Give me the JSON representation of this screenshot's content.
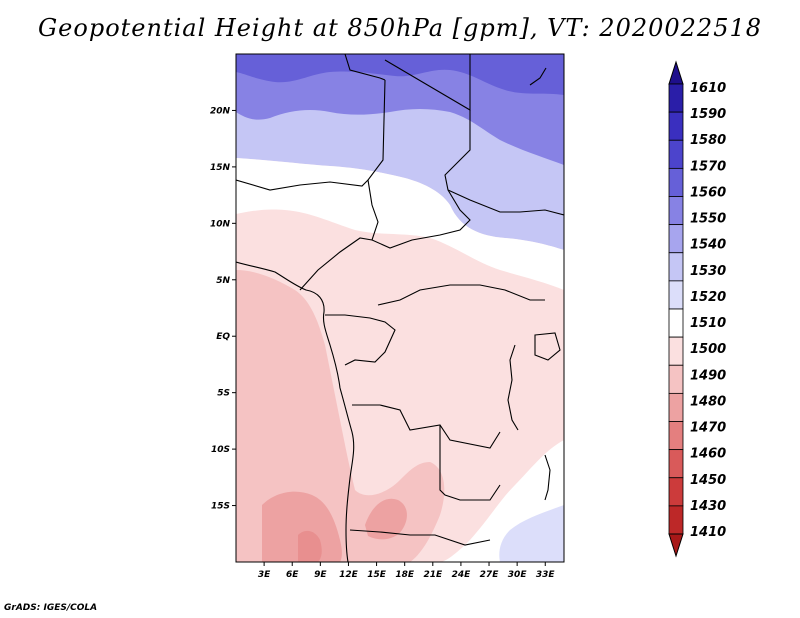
{
  "title": "Geopotential Height at 850hPa [gpm], VT: 2020022518",
  "credit": "GrADS: IGES/COLA",
  "map": {
    "lon_range": [
      0,
      35
    ],
    "lat_range": [
      -20,
      25
    ]
  },
  "lat_ticks": [
    {
      "value": 20,
      "label": "20N"
    },
    {
      "value": 15,
      "label": "15N"
    },
    {
      "value": 10,
      "label": "10N"
    },
    {
      "value": 5,
      "label": "5N"
    },
    {
      "value": 0,
      "label": "EQ"
    },
    {
      "value": -5,
      "label": "5S"
    },
    {
      "value": -10,
      "label": "10S"
    },
    {
      "value": -15,
      "label": "15S"
    }
  ],
  "lon_ticks": [
    {
      "value": 3,
      "label": "3E"
    },
    {
      "value": 6,
      "label": "6E"
    },
    {
      "value": 9,
      "label": "9E"
    },
    {
      "value": 12,
      "label": "12E"
    },
    {
      "value": 15,
      "label": "15E"
    },
    {
      "value": 18,
      "label": "18E"
    },
    {
      "value": 21,
      "label": "21E"
    },
    {
      "value": 24,
      "label": "24E"
    },
    {
      "value": 27,
      "label": "27E"
    },
    {
      "value": 30,
      "label": "30E"
    },
    {
      "value": 33,
      "label": "33E"
    }
  ],
  "legend": {
    "levels": [
      {
        "label": "1610",
        "color": "#1e0f8c"
      },
      {
        "label": "1590",
        "color": "#2a1ea8"
      },
      {
        "label": "1580",
        "color": "#3a2fbf"
      },
      {
        "label": "1570",
        "color": "#4c44cc"
      },
      {
        "label": "1560",
        "color": "#6660d8"
      },
      {
        "label": "1550",
        "color": "#8782e4"
      },
      {
        "label": "1540",
        "color": "#a7a5ee"
      },
      {
        "label": "1530",
        "color": "#c5c6f5"
      },
      {
        "label": "1520",
        "color": "#dcdefa"
      },
      {
        "label": "1510",
        "color": "#ffffff"
      },
      {
        "label": "1500",
        "color": "#fbe0e0"
      },
      {
        "label": "1490",
        "color": "#f5c3c3"
      },
      {
        "label": "1480",
        "color": "#eda2a2"
      },
      {
        "label": "1470",
        "color": "#e47f7f"
      },
      {
        "label": "1460",
        "color": "#d95a5a"
      },
      {
        "label": "1450",
        "color": "#cc3b3b"
      },
      {
        "label": "1430",
        "color": "#bd2828"
      },
      {
        "label": "1410",
        "color": "#a81818"
      }
    ]
  },
  "fields": [
    {
      "name": "high-north",
      "level": "1560",
      "color": "#6660d8"
    },
    {
      "name": "north",
      "level": "1550",
      "color": "#8782e4"
    },
    {
      "name": "north-mid",
      "level": "1530",
      "color": "#c5c6f5"
    },
    {
      "name": "sahel",
      "level": "1510",
      "color": "#ffffff"
    },
    {
      "name": "central",
      "level": "1500",
      "color": "#fbe0e0"
    },
    {
      "name": "atlantic",
      "level": "1490",
      "color": "#f5c3c3"
    },
    {
      "name": "southwest",
      "level": "1480",
      "color": "#eda2a2"
    }
  ]
}
